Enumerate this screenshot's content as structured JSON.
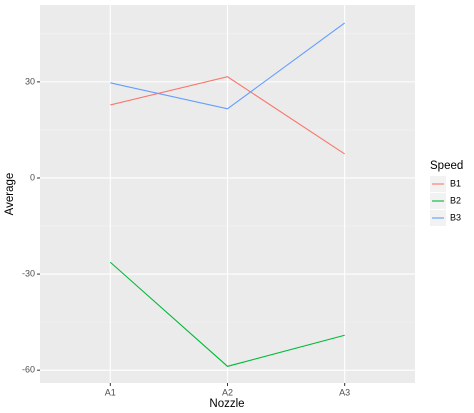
{
  "chart_data": {
    "type": "line",
    "x_label": "Nozzle",
    "y_label": "Average",
    "legend_title": "Speed",
    "categories": [
      "A1",
      "A2",
      "A3"
    ],
    "series": [
      {
        "name": "B1",
        "color": "#F8766D",
        "values": [
          22.8,
          31.6,
          7.5
        ]
      },
      {
        "name": "B2",
        "color": "#00BA38",
        "values": [
          -26.3,
          -58.8,
          -49.1
        ]
      },
      {
        "name": "B3",
        "color": "#619CFF",
        "values": [
          29.7,
          21.6,
          48.4
        ]
      }
    ],
    "ylim": [
      -64,
      54
    ],
    "yticks": [
      -60,
      -30,
      0,
      30
    ],
    "grid": true,
    "legend": "right"
  }
}
